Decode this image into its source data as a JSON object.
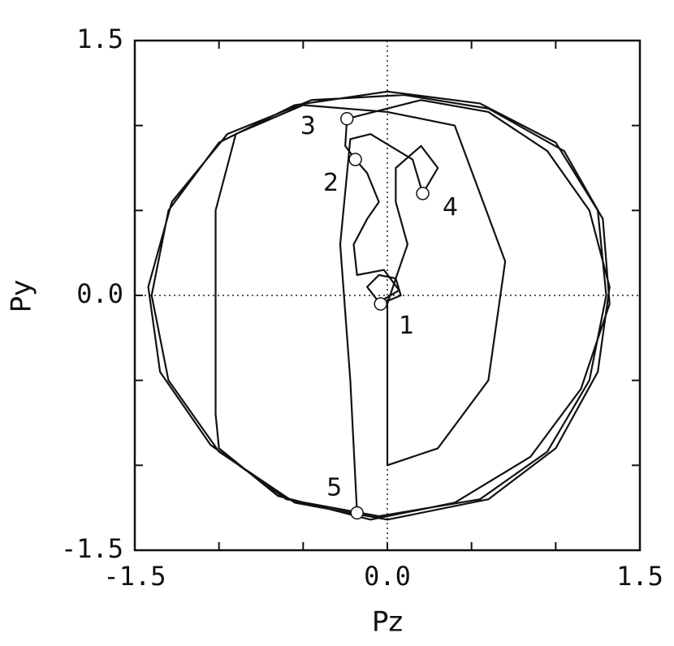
{
  "chart_data": {
    "type": "line",
    "x_label": "Pz",
    "y_label": "Py",
    "xlim": [
      -1.5,
      1.5
    ],
    "ylim": [
      -1.5,
      1.5
    ],
    "xticks": [
      -1.5,
      {
        "value": 0,
        "label": "0.0"
      },
      1.5
    ],
    "yticks": [
      -1.5,
      {
        "value": 0,
        "label": "0.0"
      },
      1.5
    ],
    "minor_ticks": [
      -1,
      -0.5,
      0.5,
      1
    ],
    "zero_lines": true,
    "series": [
      {
        "color": "#111111",
        "x": [
          -0.04,
          0.08,
          0.05,
          -0.05,
          -0.12,
          -0.05,
          0.07,
          -0.02,
          -0.18,
          -0.2,
          -0.12,
          -0.05,
          -0.12,
          -0.19,
          -0.25,
          -0.24,
          0.2,
          0.6,
          0.95,
          1.2,
          1.32,
          1.25,
          1.0,
          0.6,
          0.0,
          -0.55,
          -1.0,
          -1.3,
          -1.4,
          -1.3,
          -1.0,
          -0.55,
          0.0,
          0.55,
          1.0,
          1.25,
          1.3,
          1.2,
          0.95,
          0.55,
          -0.05,
          -0.6,
          -1.05,
          -1.35,
          -1.42,
          -1.28,
          -0.95,
          -0.45,
          0.1,
          0.6,
          1.05,
          1.28,
          1.32,
          1.15,
          0.85,
          0.4,
          -0.1,
          -0.65,
          -1.0,
          -1.02,
          -1.02,
          -0.9,
          -0.5,
          0.0,
          0.4,
          0.7,
          0.6,
          0.3,
          0.0,
          0.0,
          0.05,
          0.12,
          0.05,
          0.05,
          0.2,
          0.3,
          0.21,
          0.15,
          -0.1,
          -0.22,
          -0.28,
          -0.22,
          -0.18
        ],
        "y": [
          -0.05,
          0.0,
          0.1,
          0.12,
          0.05,
          -0.04,
          0.03,
          0.15,
          0.12,
          0.3,
          0.45,
          0.55,
          0.72,
          0.8,
          0.88,
          1.04,
          1.15,
          1.08,
          0.85,
          0.5,
          0.05,
          -0.45,
          -0.9,
          -1.2,
          -1.32,
          -1.22,
          -0.92,
          -0.5,
          0.0,
          0.5,
          0.9,
          1.12,
          1.2,
          1.13,
          0.9,
          0.5,
          0.0,
          -0.5,
          -0.92,
          -1.2,
          -1.3,
          -1.2,
          -0.88,
          -0.45,
          0.05,
          0.55,
          0.95,
          1.15,
          1.18,
          1.1,
          0.85,
          0.45,
          -0.05,
          -0.55,
          -0.95,
          -1.22,
          -1.32,
          -1.18,
          -0.9,
          -0.7,
          0.5,
          0.95,
          1.12,
          1.08,
          1.0,
          0.2,
          -0.5,
          -0.9,
          -1.0,
          -0.05,
          0.1,
          0.3,
          0.55,
          0.75,
          0.88,
          0.75,
          0.6,
          0.8,
          0.95,
          0.92,
          0.3,
          -0.5,
          -1.28
        ]
      }
    ],
    "markers": {
      "labels": [
        "1",
        "2",
        "3",
        "4",
        "5"
      ],
      "x": [
        -0.04,
        -0.19,
        -0.24,
        0.21,
        -0.18
      ],
      "y": [
        -0.05,
        0.8,
        1.04,
        0.6,
        -1.28
      ]
    }
  }
}
